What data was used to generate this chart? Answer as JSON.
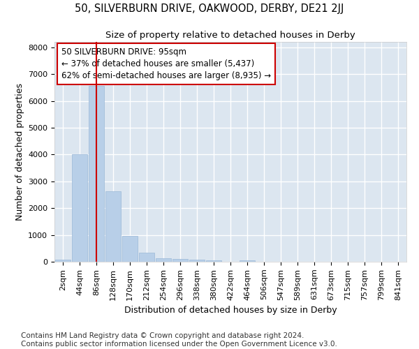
{
  "title1": "50, SILVERBURN DRIVE, OAKWOOD, DERBY, DE21 2JJ",
  "title2": "Size of property relative to detached houses in Derby",
  "xlabel": "Distribution of detached houses by size in Derby",
  "ylabel": "Number of detached properties",
  "bar_color": "#b8cfe8",
  "bar_edge_color": "#9ab8d8",
  "background_color": "#dce6f0",
  "grid_color": "#ffffff",
  "annotation_box_color": "#cc0000",
  "vline_color": "#cc0000",
  "vline_x_idx": 2,
  "annotation_text_line1": "50 SILVERBURN DRIVE: 95sqm",
  "annotation_text_line2": "← 37% of detached houses are smaller (5,437)",
  "annotation_text_line3": "62% of semi-detached houses are larger (8,935) →",
  "categories": [
    "2sqm",
    "44sqm",
    "86sqm",
    "128sqm",
    "170sqm",
    "212sqm",
    "254sqm",
    "296sqm",
    "338sqm",
    "380sqm",
    "422sqm",
    "464sqm",
    "506sqm",
    "547sqm",
    "589sqm",
    "631sqm",
    "673sqm",
    "715sqm",
    "757sqm",
    "799sqm",
    "841sqm"
  ],
  "bar_heights": [
    80,
    4000,
    6550,
    2620,
    960,
    330,
    130,
    110,
    70,
    55,
    0,
    60,
    0,
    0,
    0,
    0,
    0,
    0,
    0,
    0,
    0
  ],
  "ylim": [
    0,
    8200
  ],
  "yticks": [
    0,
    1000,
    2000,
    3000,
    4000,
    5000,
    6000,
    7000,
    8000
  ],
  "footer_line1": "Contains HM Land Registry data © Crown copyright and database right 2024.",
  "footer_line2": "Contains public sector information licensed under the Open Government Licence v3.0.",
  "title_fontsize": 10.5,
  "subtitle_fontsize": 9.5,
  "tick_fontsize": 8,
  "label_fontsize": 9,
  "footer_fontsize": 7.5
}
